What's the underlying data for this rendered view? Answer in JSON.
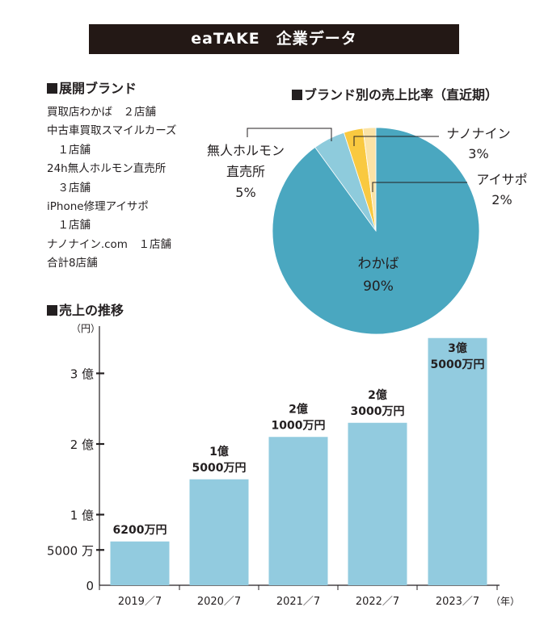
{
  "title": "eaTAKE　企業データ",
  "brands_section": {
    "heading": "展開ブランド",
    "lines": [
      "買取店わかば　２店舗",
      "中古車買取スマイルカーズ",
      "　１店舗",
      "24h無人ホルモン直売所",
      "　３店舗",
      "iPhone修理アイサポ",
      "　１店舗",
      "ナノナイン.com　１店舗",
      "合計8店舗"
    ]
  },
  "pie_section": {
    "heading": "ブランド別の売上比率（直近期）"
  },
  "sales_section": {
    "heading": "売上の推移"
  },
  "colors": {
    "title_bg": "#231815",
    "pie": [
      "#4aa7c0",
      "#8ecbdc",
      "#f9c940",
      "#fbe3a6"
    ],
    "bar": "#92cbdf",
    "axis": "#231f20"
  },
  "chart_data": [
    {
      "type": "pie",
      "title": "ブランド別の売上比率（直近期）",
      "slices": [
        {
          "label": "わかば",
          "value": 90,
          "value_label": "90%"
        },
        {
          "label": "無人ホルモン直売所",
          "label_lines": [
            "無人ホルモン",
            "直売所"
          ],
          "value": 5,
          "value_label": "5%"
        },
        {
          "label": "ナノナイン",
          "value": 3,
          "value_label": "3%"
        },
        {
          "label": "アイサポ",
          "value": 2,
          "value_label": "2%"
        }
      ]
    },
    {
      "type": "bar",
      "title": "売上の推移",
      "ylabel": "（円）",
      "xunit": "（年）",
      "categories": [
        "2019／7",
        "2020／7",
        "2021／7",
        "2022／7",
        "2023／7"
      ],
      "values": [
        62000000,
        150000000,
        210000000,
        230000000,
        350000000
      ],
      "value_labels": [
        [
          "6200万円"
        ],
        [
          "1億",
          "5000万円"
        ],
        [
          "2億",
          "1000万円"
        ],
        [
          "2億",
          "3000万円"
        ],
        [
          "3億",
          "5000万円"
        ]
      ],
      "yticks": [
        {
          "value": 0,
          "label": "0"
        },
        {
          "value": 50000000,
          "label": "5000 万"
        },
        {
          "value": 100000000,
          "label": "1 億"
        },
        {
          "value": 200000000,
          "label": "2 億"
        },
        {
          "value": 300000000,
          "label": "3 億"
        }
      ],
      "ylim": [
        0,
        375000000
      ]
    }
  ]
}
